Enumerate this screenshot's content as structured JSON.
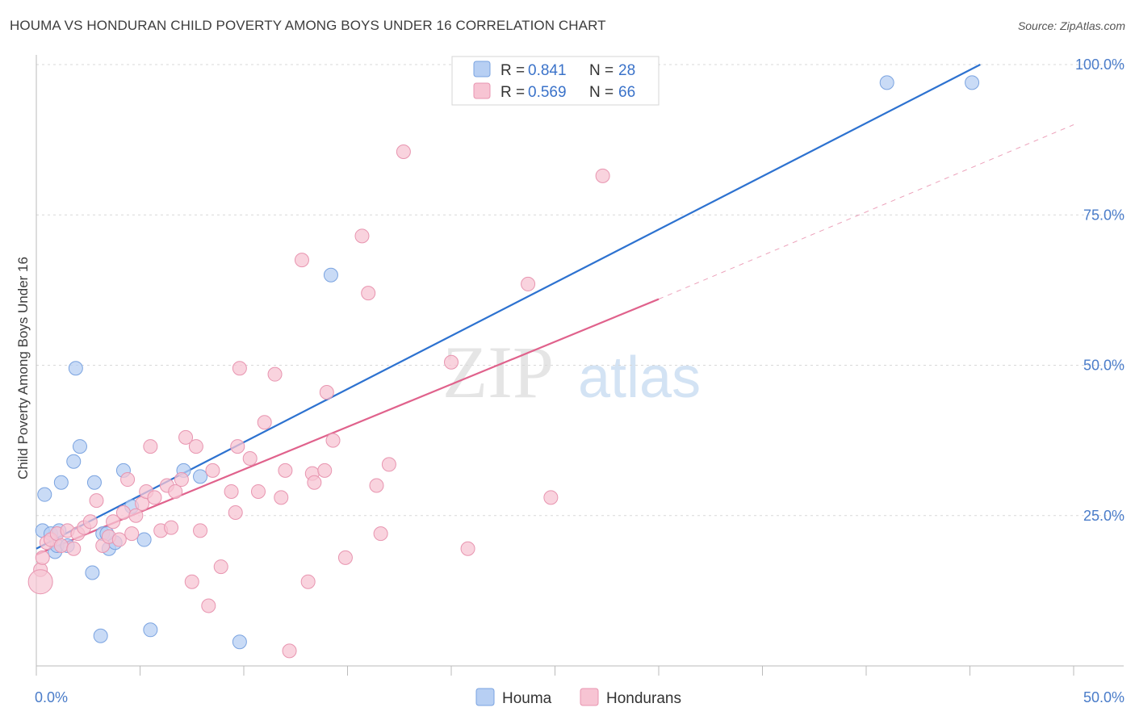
{
  "title": "HOUMA VS HONDURAN CHILD POVERTY AMONG BOYS UNDER 16 CORRELATION CHART",
  "source": "Source: ZipAtlas.com",
  "watermark": {
    "zip": "ZIP",
    "atlas": "atlas"
  },
  "legend_top": [
    {
      "r_label": "R =",
      "r_value": "0.841",
      "n_label": "N =",
      "n_value": "28"
    },
    {
      "r_label": "R =",
      "r_value": "0.569",
      "n_label": "N =",
      "n_value": "66"
    }
  ],
  "legend_bottom": [
    "Houma",
    "Hondurans"
  ],
  "colors": {
    "houma_fill": "#b7cff3",
    "houma_stroke": "#7aa3e0",
    "houma_line": "#2d72d0",
    "hond_fill": "#f7c4d3",
    "hond_stroke": "#e895b0",
    "hond_line": "#e0628c",
    "tick_text": "#4a7cc9",
    "grid": "#d8d8d8"
  },
  "chart_data": {
    "type": "scatter",
    "xlabel": "",
    "ylabel": "Child Poverty Among Boys Under 16",
    "xlim": [
      0,
      50
    ],
    "ylim": [
      0,
      100
    ],
    "x_tick_labels": [
      {
        "value": 0,
        "label": "0.0%"
      },
      {
        "value": 50,
        "label": "50.0%"
      }
    ],
    "y_tick_labels": [
      {
        "value": 25,
        "label": "25.0%"
      },
      {
        "value": 50,
        "label": "50.0%"
      },
      {
        "value": 75,
        "label": "75.0%"
      },
      {
        "value": 100,
        "label": "100.0%"
      }
    ],
    "grid": true,
    "legend_position": "top-center",
    "series": [
      {
        "name": "Houma",
        "points": [
          [
            0.3,
            22.5
          ],
          [
            0.4,
            28.5
          ],
          [
            0.7,
            22
          ],
          [
            0.9,
            19
          ],
          [
            1.0,
            20
          ],
          [
            1.1,
            22.5
          ],
          [
            1.2,
            30.5
          ],
          [
            1.5,
            20
          ],
          [
            1.8,
            34
          ],
          [
            1.9,
            49.5
          ],
          [
            2.1,
            36.5
          ],
          [
            2.7,
            15.5
          ],
          [
            2.8,
            30.5
          ],
          [
            3.1,
            5
          ],
          [
            3.2,
            22
          ],
          [
            3.5,
            19.5
          ],
          [
            3.8,
            20.5
          ],
          [
            4.2,
            32.5
          ],
          [
            4.6,
            26.5
          ],
          [
            5.2,
            21
          ],
          [
            5.5,
            6
          ],
          [
            7.1,
            32.5
          ],
          [
            7.9,
            31.5
          ],
          [
            9.8,
            4
          ],
          [
            14.2,
            65
          ],
          [
            41.0,
            97
          ],
          [
            45.1,
            97
          ],
          [
            3.4,
            22
          ]
        ],
        "trend": {
          "x": [
            0,
            45.5
          ],
          "y": [
            19.5,
            100
          ]
        }
      },
      {
        "name": "Hondurans",
        "points": [
          [
            0.2,
            16
          ],
          [
            0.3,
            18
          ],
          [
            0.5,
            20.5
          ],
          [
            0.7,
            21
          ],
          [
            1.0,
            22
          ],
          [
            1.2,
            20
          ],
          [
            1.5,
            22.5
          ],
          [
            1.8,
            19.5
          ],
          [
            2.0,
            22
          ],
          [
            2.3,
            23
          ],
          [
            2.6,
            24
          ],
          [
            2.9,
            27.5
          ],
          [
            3.2,
            20
          ],
          [
            3.5,
            21.5
          ],
          [
            3.7,
            24
          ],
          [
            4.0,
            21
          ],
          [
            4.2,
            25.5
          ],
          [
            4.4,
            31
          ],
          [
            4.6,
            22
          ],
          [
            4.8,
            25
          ],
          [
            5.1,
            27
          ],
          [
            5.3,
            29
          ],
          [
            5.5,
            36.5
          ],
          [
            5.7,
            28
          ],
          [
            6.0,
            22.5
          ],
          [
            6.3,
            30
          ],
          [
            6.5,
            23
          ],
          [
            6.7,
            29
          ],
          [
            7.0,
            31
          ],
          [
            7.2,
            38
          ],
          [
            7.5,
            14
          ],
          [
            7.7,
            36.5
          ],
          [
            7.9,
            22.5
          ],
          [
            8.3,
            10
          ],
          [
            8.5,
            32.5
          ],
          [
            8.9,
            16.5
          ],
          [
            9.4,
            29
          ],
          [
            9.6,
            25.5
          ],
          [
            9.7,
            36.5
          ],
          [
            9.8,
            49.5
          ],
          [
            10.3,
            34.5
          ],
          [
            10.7,
            29
          ],
          [
            11.0,
            40.5
          ],
          [
            11.5,
            48.5
          ],
          [
            11.8,
            28
          ],
          [
            12.0,
            32.5
          ],
          [
            12.2,
            2.5
          ],
          [
            12.8,
            67.5
          ],
          [
            13.1,
            14
          ],
          [
            13.3,
            32
          ],
          [
            13.4,
            30.5
          ],
          [
            13.9,
            32.5
          ],
          [
            14.0,
            45.5
          ],
          [
            14.3,
            37.5
          ],
          [
            14.9,
            18
          ],
          [
            15.7,
            71.5
          ],
          [
            16.0,
            62
          ],
          [
            16.4,
            30
          ],
          [
            16.6,
            22
          ],
          [
            17.0,
            33.5
          ],
          [
            17.7,
            85.5
          ],
          [
            20.0,
            50.5
          ],
          [
            20.8,
            19.5
          ],
          [
            23.7,
            63.5
          ],
          [
            24.8,
            28
          ],
          [
            27.3,
            81.5
          ]
        ],
        "trend": {
          "x": [
            0,
            30
          ],
          "y": [
            18.5,
            61
          ]
        },
        "trend_dashed": {
          "x": [
            30,
            50
          ],
          "y": [
            61,
            90
          ]
        }
      }
    ]
  }
}
